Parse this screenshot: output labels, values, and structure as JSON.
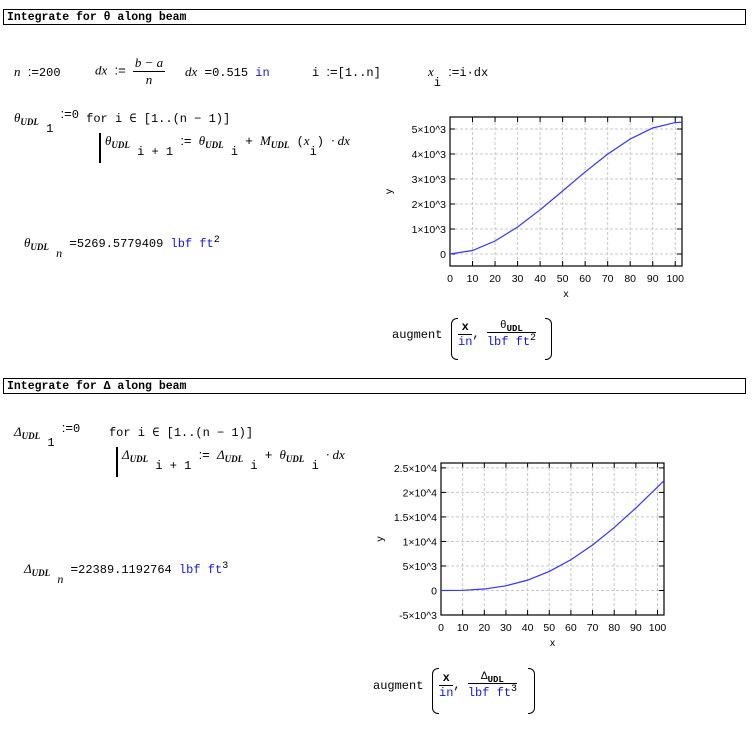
{
  "section1": {
    "header": "Integrate for θ along beam",
    "n_var": "n",
    "assign": ":=",
    "n_val": "200",
    "dx_var": "dx",
    "dx_num": "b − a",
    "dx_den": "n",
    "dx_eval_var": "dx",
    "equals": "=",
    "dx_val": "0.515",
    "dx_unit": "in",
    "i_var": "i",
    "i_range": "[1..n]",
    "x_var": "x",
    "x_sub": "i",
    "x_expr": "i·dx",
    "theta": "θ",
    "udl": "UDL",
    "idx1": "1",
    "zero": "0",
    "for_kw": "for",
    "loop_range": "i ∈ [1..(n − 1)]",
    "idx_ip1": "i + 1",
    "idx_i": "i",
    "plus": "+",
    "M": "M",
    "x_i": "x",
    "dot_dx": "· dx",
    "idx_n": "n",
    "result_val": "5269.5779409",
    "result_unit": "lbf ft",
    "result_exp": "2",
    "augment": "augment",
    "aug_x": "x",
    "aug_in": "in",
    "aug_theta": "θ",
    "aug_udl": "UDL",
    "aug_unit": "lbf ft",
    "aug_exp": "2"
  },
  "section2": {
    "header": "Integrate for Δ along beam",
    "delta": "Δ",
    "udl": "UDL",
    "idx1": "1",
    "assign": ":=",
    "zero": "0",
    "for_kw": "for",
    "loop_range": "i ∈ [1..(n − 1)]",
    "idx_ip1": "i + 1",
    "idx_i": "i",
    "plus": "+",
    "theta": "θ",
    "dot_dx": "· dx",
    "idx_n": "n",
    "equals": "=",
    "result_val": "22389.1192764",
    "result_unit": "lbf ft",
    "result_exp": "3",
    "augment": "augment",
    "aug_x": "x",
    "aug_in": "in",
    "aug_delta": "Δ",
    "aug_udl": "UDL",
    "aug_unit": "lbf ft",
    "aug_exp": "3"
  },
  "chart_data": [
    {
      "type": "line",
      "xlabel": "x",
      "ylabel": "y",
      "xlim": [
        0,
        103
      ],
      "ylim": [
        -480,
        5480
      ],
      "grid": true,
      "line_color": "#3333ff",
      "xticks": [
        0,
        10,
        20,
        30,
        40,
        50,
        60,
        70,
        80,
        90,
        100
      ],
      "yticks": [
        0,
        1000,
        2000,
        3000,
        4000,
        5000
      ],
      "ytick_labels": [
        "0",
        "1×10^3",
        "2×10^3",
        "3×10^3",
        "4×10^3",
        "5×10^3"
      ],
      "x": [
        0,
        10,
        20,
        30,
        40,
        50,
        60,
        70,
        80,
        90,
        100,
        103
      ],
      "y": [
        0,
        139,
        519,
        1081,
        1767,
        2520,
        3282,
        3994,
        4600,
        5040,
        5258,
        5270
      ]
    },
    {
      "type": "line",
      "xlabel": "x",
      "ylabel": "y",
      "xlim": [
        0,
        103
      ],
      "ylim": [
        -5000,
        26000
      ],
      "grid": true,
      "line_color": "#3333ff",
      "xticks": [
        0,
        10,
        20,
        30,
        40,
        50,
        60,
        70,
        80,
        90,
        100
      ],
      "yticks": [
        -5000,
        0,
        5000,
        10000,
        15000,
        20000,
        25000
      ],
      "ytick_labels": [
        "-5×10^3",
        "0",
        "5×10^3",
        "1×10^4",
        "1.5×10^4",
        "2×10^4",
        "2.5×10^4"
      ],
      "x": [
        0,
        10,
        20,
        30,
        40,
        50,
        60,
        70,
        80,
        90,
        100,
        103
      ],
      "y": [
        0,
        39,
        296,
        946,
        2113,
        3880,
        6274,
        9280,
        12833,
        16821,
        21084,
        22389
      ]
    }
  ]
}
